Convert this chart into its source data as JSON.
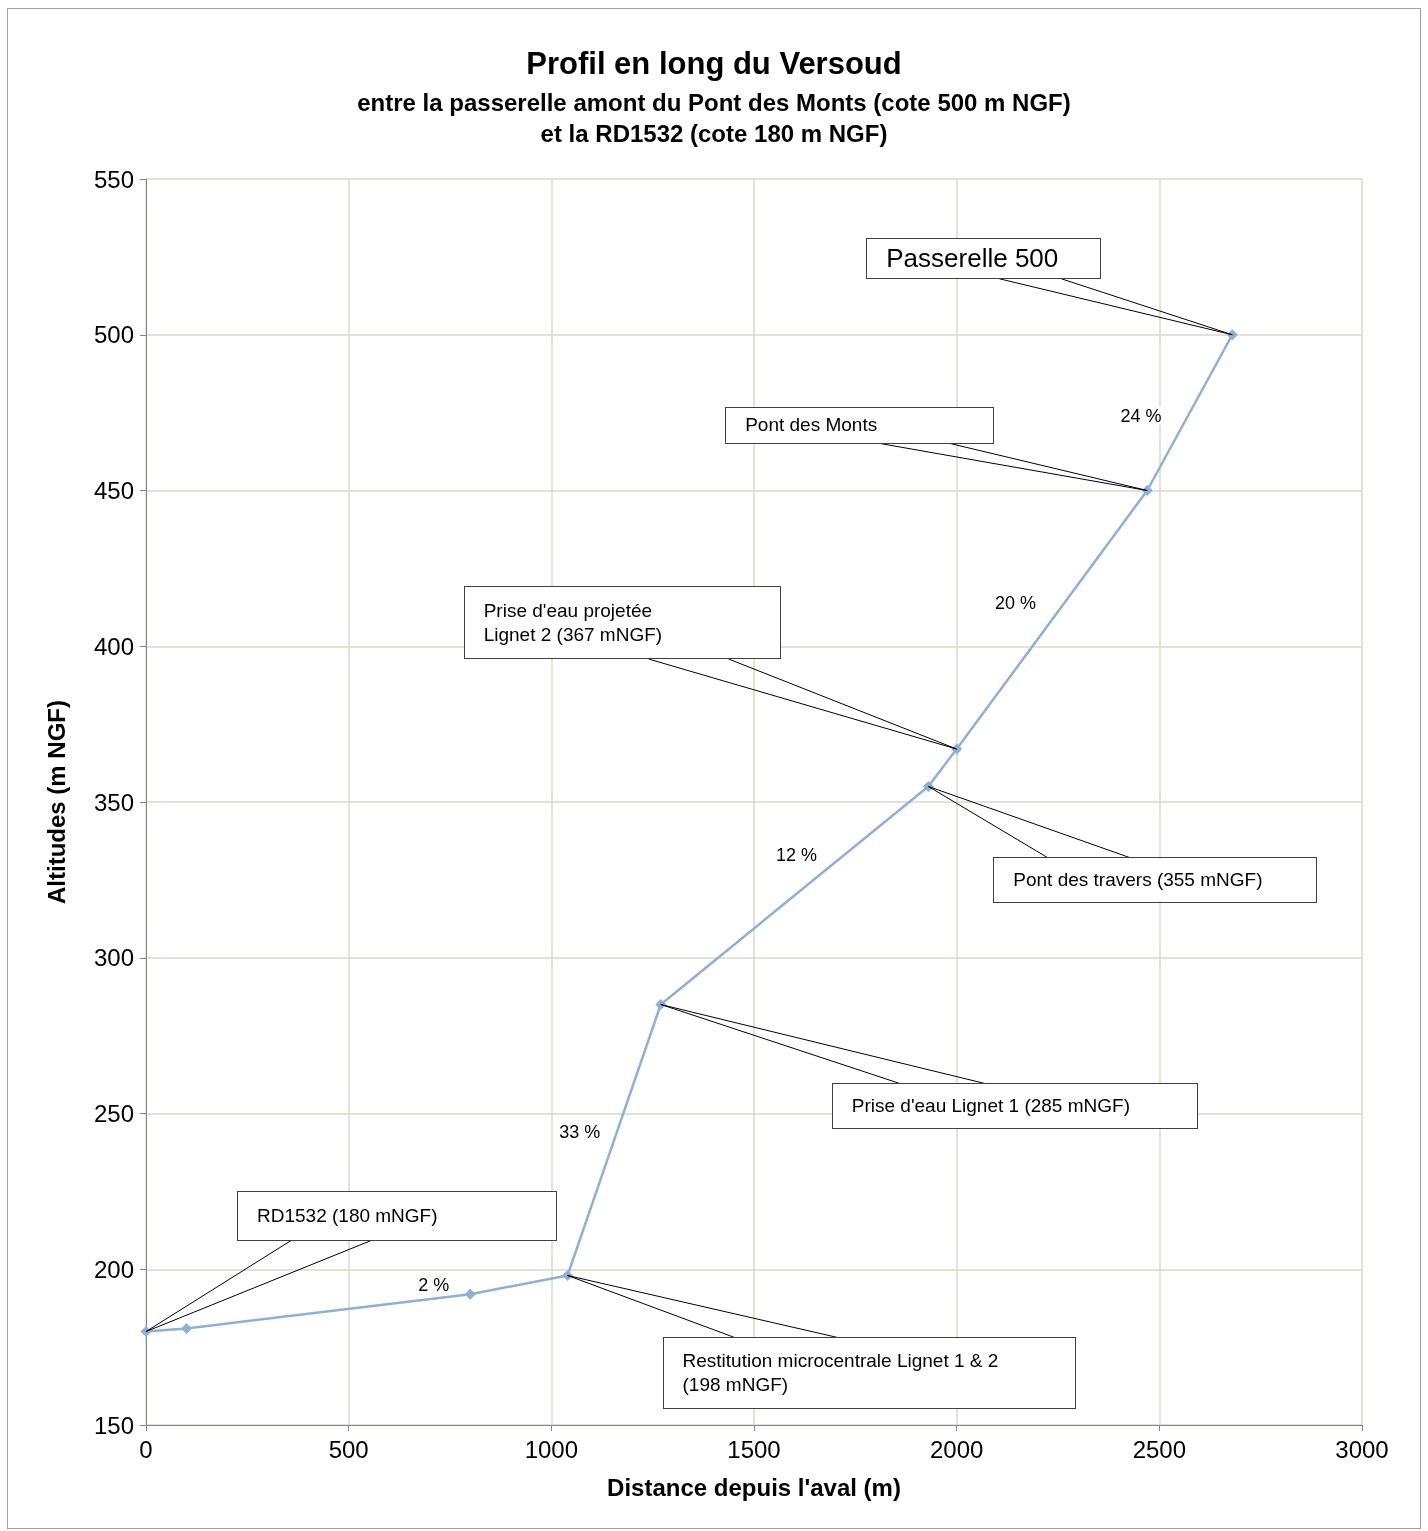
{
  "chart_data": {
    "type": "line",
    "title": "Profil en long du Versoud",
    "subtitle": "entre la passerelle amont du Pont des Monts (cote 500 m NGF)\net la RD1532 (cote 180 m NGF)",
    "xlabel": "Distance depuis l'aval (m)",
    "ylabel": "Altitudes (m NGF)",
    "x": [
      0,
      100,
      800,
      1040,
      1270,
      1930,
      2000,
      2470,
      2680
    ],
    "series": [
      {
        "color": "#8eb0d4",
        "values": [
          180,
          181,
          192,
          198,
          285,
          355,
          367,
          450,
          500
        ]
      }
    ],
    "xlim": [
      0,
      3000
    ],
    "xticks": [
      0,
      500,
      1000,
      1500,
      2000,
      2500,
      3000
    ],
    "ylim": [
      150,
      550
    ],
    "yticks": [
      150,
      200,
      250,
      300,
      350,
      400,
      450,
      500,
      550
    ],
    "grid": true,
    "marker": "diamond",
    "line_style": "solid",
    "annotations": [
      "Passerelle 500",
      "Pont des Monts",
      "Prise d'eau projetée\nLignet 2 (367 mNGF)",
      "Pont des travers (355 mNGF)",
      "Prise d'eau Lignet 1 (285 mNGF)",
      "RD1532 (180 mNGF)",
      "Restitution microcentrale Lignet 1 & 2\n(198 mNGF)",
      {
        "text": "24 %",
        "x": 2455,
        "y": 474
      },
      {
        "text": "20 %",
        "x": 2145,
        "y": 414
      },
      {
        "text": "12 %",
        "x": 1605,
        "y": 333
      },
      {
        "text": "33 %",
        "x": 1070,
        "y": 244
      },
      {
        "text": "2 %",
        "x": 710,
        "y": 195
      }
    ]
  }
}
